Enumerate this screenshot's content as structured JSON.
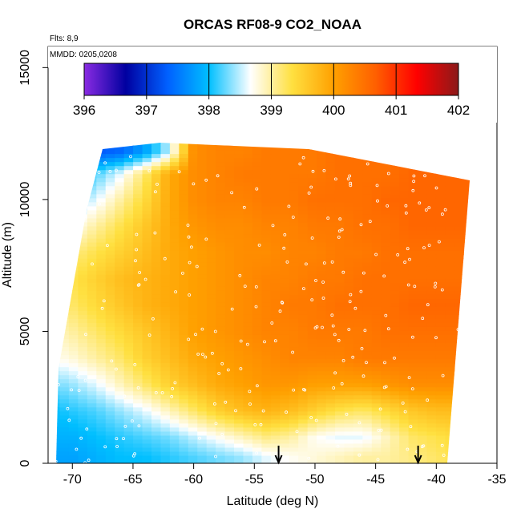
{
  "chart_data": {
    "type": "heatmap",
    "title": "ORCAS RF08-9 CO2_NOAA",
    "annotations": {
      "flights": "Flts: 8,9",
      "dates": "MMDD: 0205,0208"
    },
    "xlabel": "Latitude (deg N)",
    "ylabel": "Altitude (m)",
    "xlim": [
      -72,
      -35
    ],
    "ylim": [
      0,
      15800
    ],
    "x_ticks": [
      -70,
      -65,
      -60,
      -55,
      -50,
      -45,
      -40,
      -35
    ],
    "x_tick_labels": [
      "-70",
      "-65",
      "-60",
      "-55",
      "-50",
      "-45",
      "-40",
      "-35"
    ],
    "y_ticks": [
      0,
      5000,
      10000,
      15000
    ],
    "y_tick_labels": [
      "0",
      "5000",
      "10000",
      "15000"
    ],
    "colorbar": {
      "min": 396,
      "max": 402,
      "ticks": [
        396,
        397,
        398,
        399,
        400,
        401,
        402
      ],
      "tick_labels": [
        "396",
        "397",
        "398",
        "399",
        "400",
        "401",
        "402"
      ],
      "colors": [
        "#8a2be2",
        "#0000a0",
        "#0060ff",
        "#00bfff",
        "#ffffff",
        "#ffe040",
        "#ffa000",
        "#ff6000",
        "#ff0000",
        "#8b1a1a"
      ]
    },
    "field": {
      "latitude": [
        -71.5,
        -70,
        -68,
        -66,
        -64,
        -62,
        -60,
        -58,
        -56,
        -54,
        -52,
        -50,
        -48,
        -46,
        -44,
        -42,
        -40,
        -38
      ],
      "altitude": [
        250,
        1000,
        2000,
        3000,
        4000,
        5000,
        6000,
        7000,
        8000,
        9000,
        10000,
        11000,
        11800
      ],
      "co2": [
        [
          397.8,
          397.8,
          397.9,
          398.0,
          398.0,
          398.1,
          398.2,
          398.3,
          398.4,
          398.6,
          398.7,
          398.8,
          398.9,
          399.0,
          399.0,
          399.1,
          399.2,
          399.3
        ],
        [
          397.9,
          397.9,
          398.0,
          398.1,
          398.2,
          398.3,
          398.5,
          398.7,
          398.9,
          399.1,
          399.0,
          398.7,
          398.6,
          398.6,
          398.9,
          399.2,
          399.3,
          399.4
        ],
        [
          398.0,
          398.1,
          398.2,
          398.4,
          398.6,
          398.9,
          399.2,
          399.5,
          399.7,
          399.8,
          399.7,
          399.5,
          399.3,
          399.2,
          399.4,
          399.6,
          399.7,
          399.7
        ],
        [
          398.3,
          398.4,
          398.6,
          398.9,
          399.2,
          399.5,
          399.7,
          399.9,
          400.0,
          400.1,
          400.1,
          400.0,
          400.0,
          400.0,
          400.1,
          400.2,
          400.2,
          400.2
        ],
        [
          398.7,
          398.8,
          399.0,
          399.2,
          399.5,
          399.7,
          399.9,
          400.0,
          400.1,
          400.2,
          400.3,
          400.3,
          400.3,
          400.4,
          400.4,
          400.4,
          400.4,
          400.4
        ],
        [
          398.9,
          399.0,
          399.2,
          399.4,
          399.6,
          399.8,
          400.0,
          400.1,
          400.2,
          400.3,
          400.3,
          400.4,
          400.4,
          400.4,
          400.5,
          400.5,
          400.5,
          400.5
        ],
        [
          399.1,
          399.2,
          399.4,
          399.6,
          399.8,
          399.9,
          400.0,
          400.1,
          400.2,
          400.3,
          400.4,
          400.4,
          400.5,
          400.5,
          400.5,
          400.6,
          400.6,
          400.6
        ],
        [
          399.2,
          399.3,
          399.5,
          399.7,
          399.8,
          399.9,
          400.0,
          400.1,
          400.2,
          400.3,
          400.3,
          400.4,
          400.4,
          400.5,
          400.5,
          400.5,
          400.5,
          400.5
        ],
        [
          399.0,
          399.1,
          399.3,
          399.5,
          399.7,
          399.9,
          400.0,
          400.1,
          400.2,
          400.2,
          400.3,
          400.3,
          400.4,
          400.4,
          400.5,
          400.5,
          400.5,
          400.5
        ],
        [
          398.6,
          398.7,
          399.0,
          399.3,
          399.6,
          399.9,
          400.1,
          400.2,
          400.2,
          400.3,
          400.3,
          400.4,
          400.4,
          400.5,
          400.5,
          400.6,
          400.6,
          400.6
        ],
        [
          398.2,
          398.3,
          398.6,
          399.0,
          399.4,
          399.9,
          400.2,
          400.3,
          400.3,
          400.4,
          400.4,
          400.5,
          400.5,
          400.5,
          400.6,
          400.6,
          400.6,
          400.6
        ],
        [
          398.0,
          398.0,
          398.2,
          398.6,
          399.2,
          399.9,
          400.2,
          400.3,
          400.4,
          400.4,
          400.4,
          400.4,
          400.5,
          400.5,
          400.5,
          400.6,
          400.6,
          400.6
        ],
        [
          397.5,
          397.5,
          397.3,
          397.4,
          397.8,
          398.5,
          400.2,
          400.3,
          400.3,
          400.4,
          400.4,
          400.4,
          400.5,
          400.5,
          400.5,
          400.6,
          400.6,
          400.6
        ]
      ]
    },
    "arrows_latitude": [
      -53,
      -41.5
    ]
  }
}
